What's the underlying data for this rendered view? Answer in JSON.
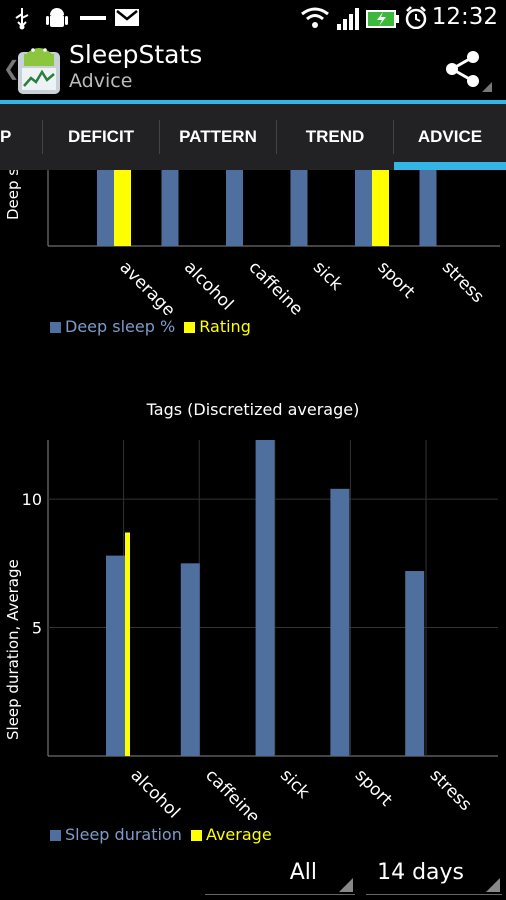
{
  "status_bar": {
    "time": "12:32",
    "icons": [
      "usb-icon",
      "android-debug-icon",
      "minus-icon",
      "gmail-icon",
      "wifi-icon",
      "signal-icon",
      "battery-charging-icon",
      "alarm-icon"
    ]
  },
  "action_bar": {
    "title": "SleepStats",
    "subtitle": "Advice",
    "share_icon": "share-icon"
  },
  "tabs": [
    {
      "label": "P"
    },
    {
      "label": "DEFICIT"
    },
    {
      "label": "PATTERN"
    },
    {
      "label": "TREND"
    },
    {
      "label": "ADVICE",
      "selected": true
    }
  ],
  "colors": {
    "accent": "#33b5e5",
    "series_blue": "#4f6f9e",
    "series_yellow": "#ffff00"
  },
  "chart_data": [
    {
      "type": "bar",
      "title": "",
      "ylabel": "Deep s",
      "categories": [
        "average",
        "alcohol",
        "caffeine",
        "sick",
        "sport",
        "stress"
      ],
      "series": [
        {
          "name": "Deep sleep %",
          "color": "#4f6f9e",
          "values": [
            1,
            1,
            1,
            1,
            1,
            1
          ]
        },
        {
          "name": "Rating",
          "color": "#ffff00",
          "values": [
            1,
            0,
            0,
            0,
            1,
            0
          ]
        }
      ],
      "legend": "bottom-left"
    },
    {
      "type": "bar",
      "title": "Tags (Discretized average)",
      "xlabel": "",
      "ylabel": "Sleep duration, Average",
      "categories": [
        "alcohol",
        "caffeine",
        "sick",
        "sport",
        "stress"
      ],
      "yticks": [
        "5",
        "10"
      ],
      "ylim": [
        0,
        12.3
      ],
      "series": [
        {
          "name": "Sleep duration",
          "color": "#4f6f9e",
          "values": [
            7.8,
            7.5,
            12.3,
            10.4,
            7.2
          ]
        },
        {
          "name": "Average",
          "color": "#ffff00",
          "values": [
            8.7,
            null,
            null,
            null,
            null
          ]
        }
      ],
      "legend": "bottom-left",
      "grid": true
    }
  ],
  "filters": {
    "scope": "All",
    "period": "14 days"
  }
}
